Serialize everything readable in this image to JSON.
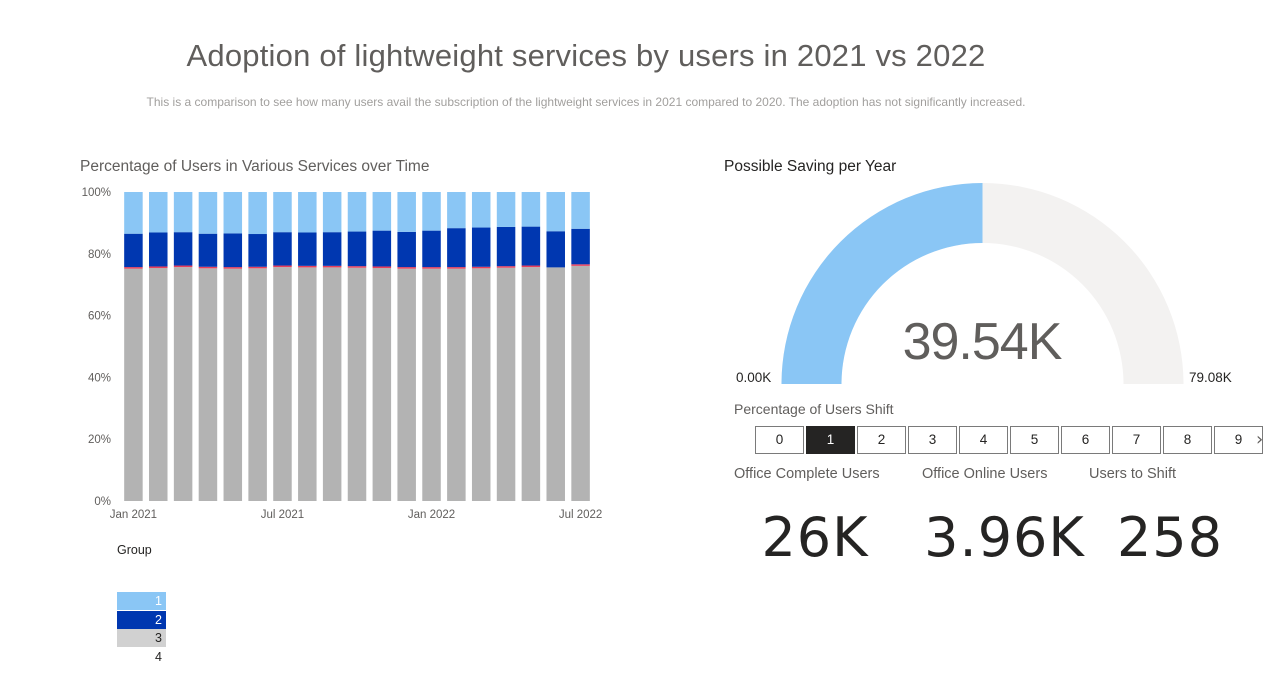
{
  "header": {
    "title": "Adoption of lightweight services by users in 2021 vs 2022",
    "subtitle": "This is a comparison to see how many users avail the subscription of the lightweight services in 2021 compared to 2020. The adoption has not significantly increased."
  },
  "colors": {
    "group1": "#8ac6f5",
    "group2": "#0037b0",
    "group3": "#b3b3b3",
    "group4": "#e83e5b",
    "gauge_fill": "#8ac6f5",
    "gauge_track": "#f3f2f1",
    "slicer_selected": "#252423"
  },
  "chart_data": [
    {
      "type": "bar",
      "stacked": "100%",
      "title": "Percentage of Users in Various Services over Time",
      "x_tick_labels": [
        "Jan 2021",
        "Jul 2021",
        "Jan 2022",
        "Jul 2022"
      ],
      "x_tick_positions": [
        0,
        6,
        12,
        18
      ],
      "y_ticks": [
        "0%",
        "20%",
        "40%",
        "60%",
        "80%",
        "100%"
      ],
      "ylim": [
        0,
        100
      ],
      "grid": false,
      "legend_title": "Group",
      "legend_position": "bottom-left",
      "categories": [
        "2021-01",
        "2021-02",
        "2021-03",
        "2021-04",
        "2021-05",
        "2021-06",
        "2021-07",
        "2021-08",
        "2021-09",
        "2021-10",
        "2021-11",
        "2021-12",
        "2022-01",
        "2022-02",
        "2022-03",
        "2022-04",
        "2022-05",
        "2022-06",
        "2022-07"
      ],
      "series": [
        {
          "name": "3",
          "color_key": "group3",
          "values": [
            75.2,
            75.4,
            75.7,
            75.3,
            75.2,
            75.3,
            75.7,
            75.6,
            75.6,
            75.5,
            75.4,
            75.2,
            75.2,
            75.2,
            75.3,
            75.5,
            75.7,
            75.6,
            76.1
          ]
        },
        {
          "name": "4",
          "color_key": "group4",
          "values": [
            0.5,
            0.5,
            0.5,
            0.5,
            0.5,
            0.5,
            0.5,
            0.5,
            0.5,
            0.5,
            0.5,
            0.5,
            0.5,
            0.5,
            0.5,
            0.5,
            0.5,
            0,
            0.5
          ]
        },
        {
          "name": "2",
          "color_key": "group2",
          "values": [
            10.8,
            11.0,
            10.8,
            10.7,
            10.9,
            10.6,
            10.8,
            10.8,
            10.9,
            11.2,
            11.6,
            11.4,
            11.8,
            12.6,
            12.7,
            12.7,
            12.6,
            11.7,
            11.5
          ]
        },
        {
          "name": "1",
          "color_key": "group1",
          "values": [
            13.5,
            13.1,
            13.0,
            13.5,
            13.4,
            13.6,
            13.0,
            13.1,
            13.0,
            12.8,
            12.5,
            12.9,
            12.5,
            11.7,
            11.5,
            11.3,
            11.2,
            12.7,
            11.9
          ]
        }
      ],
      "series_override_note": "",
      "legend": [
        {
          "label": "1",
          "color_key": "group1"
        },
        {
          "label": "2",
          "color_key": "group2"
        },
        {
          "label": "3",
          "color_key": "group3"
        },
        {
          "label": "4",
          "color_key": "group4"
        }
      ]
    },
    {
      "type": "gauge",
      "title": "Possible Saving per Year",
      "value": 39.54,
      "value_label": "39.54K",
      "min": 0,
      "max": 79.08,
      "min_label": "0.00K",
      "max_label": "79.08K"
    }
  ],
  "slicer": {
    "title": "Percentage of Users Shift",
    "options": [
      "0",
      "1",
      "2",
      "3",
      "4",
      "5",
      "6",
      "7",
      "8",
      "9"
    ],
    "selected": "1",
    "next_glyph": "›"
  },
  "cards": [
    {
      "label": "Office Complete Users",
      "value": "26K"
    },
    {
      "label": "Office Online Users",
      "value": "3.96K"
    },
    {
      "label": "Users to Shift",
      "value": "258"
    }
  ]
}
